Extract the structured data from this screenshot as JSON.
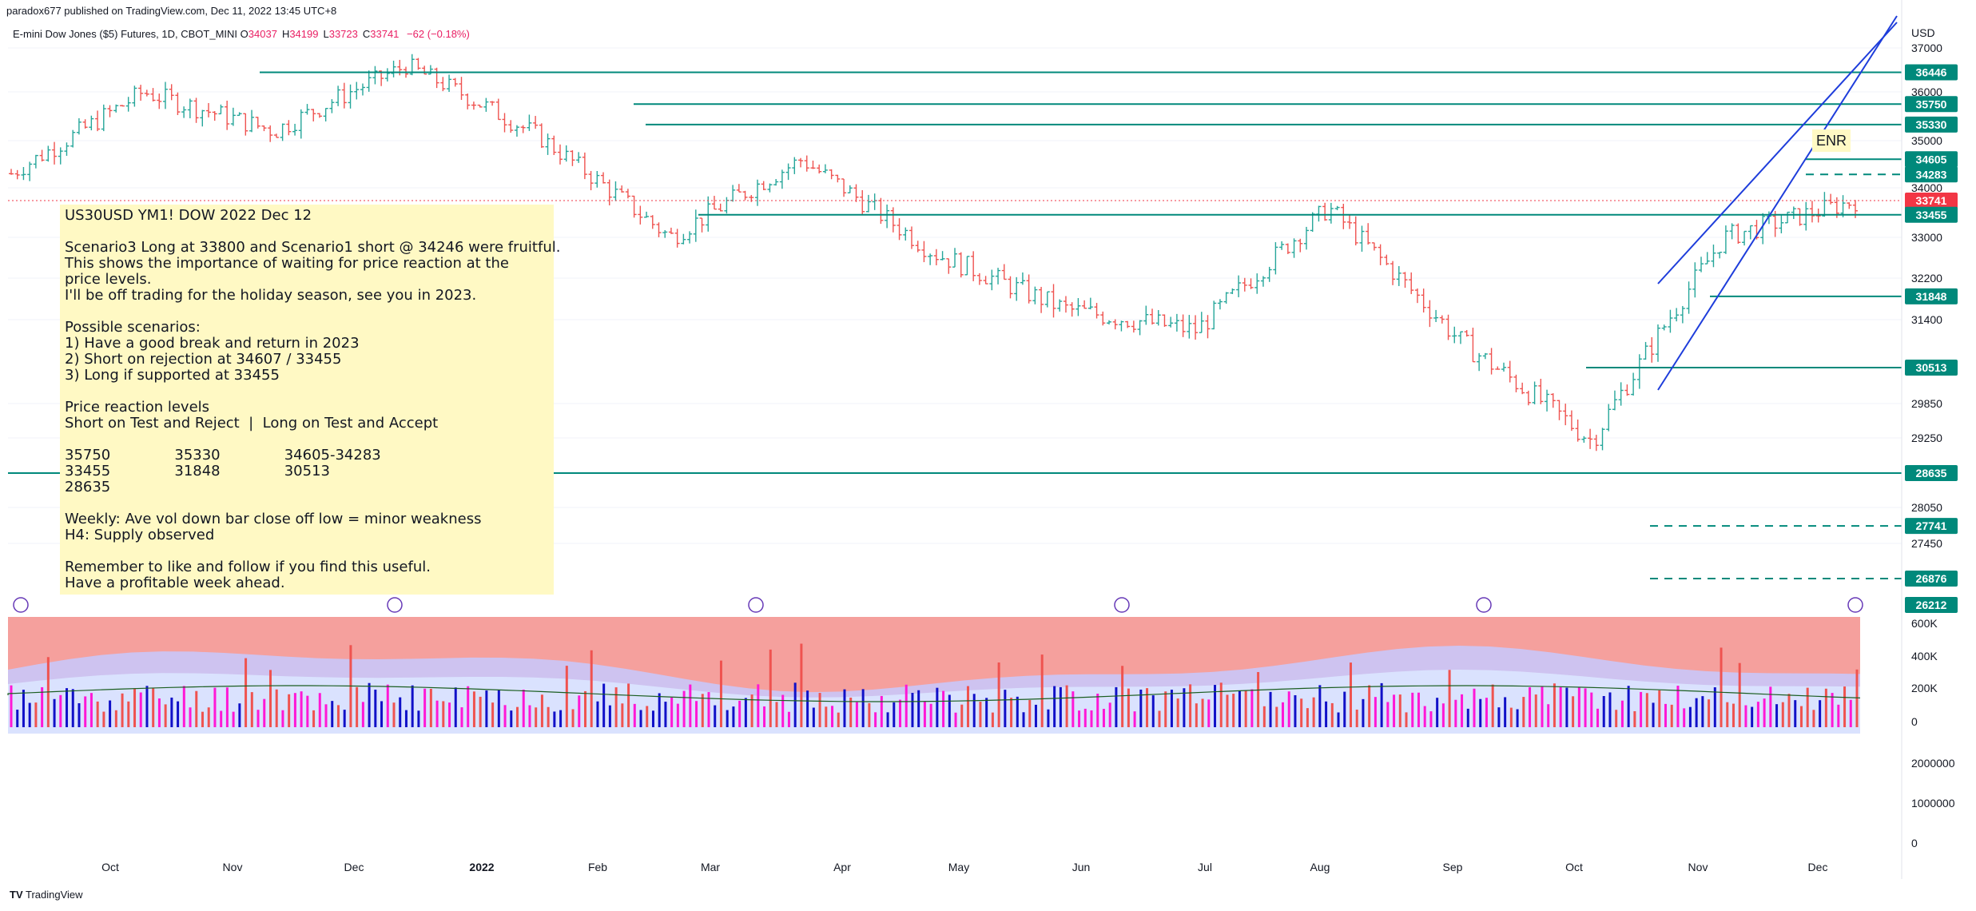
{
  "header": {
    "published": "paradox677 published on TradingView.com, Dec 11, 2022 13:45 UTC+8",
    "symbol": "E-mini Dow Jones ($5) Futures, 1D, CBOT_MINI",
    "ohlc": [
      {
        "label": "O",
        "value": "34037"
      },
      {
        "label": "H",
        "value": "34199"
      },
      {
        "label": "L",
        "value": "33723"
      },
      {
        "label": "C",
        "value": "33741"
      }
    ],
    "change": "−62 (−0.18%)"
  },
  "note": {
    "lines": [
      "US30USD YM1! DOW 2022 Dec 12",
      "",
      "Scenario3 Long at 33800 and Scenario1 short @ 34246 were fruitful.",
      "This shows the importance of waiting for price reaction at the",
      "price levels.",
      "I'll be off trading for the holiday season, see you in 2023.",
      "",
      "Possible scenarios:",
      "1) Have a good break and return in 2023",
      "2) Short on rejection at 34607 / 33455",
      "3) Long if supported at 33455",
      "",
      "Price reaction levels",
      "Short on Test and Reject  |  Long on Test and Accept",
      "",
      "35750              35330              34605-34283",
      "33455              31848              30513",
      "28635",
      "",
      "Weekly: Ave vol down bar close off low = minor weakness",
      "H4: Supply observed",
      "",
      "Remember to like and follow if you find this useful.",
      "Have a profitable week ahead."
    ]
  },
  "footer": {
    "brand": "TradingView"
  },
  "colors": {
    "up": "#26a69a",
    "down": "#ef5350",
    "level": "#00897b",
    "channel": "#1e3ddb",
    "current": "#f23645",
    "volume_bg": "#f5a09d",
    "volume_band": "#c7c9ff",
    "vol_blue": "#1010c8",
    "vol_magenta": "#ff18d6",
    "vol_red": "#ef5350"
  },
  "chart_data": {
    "type": "candlestick",
    "title": "E-mini Dow Jones ($5) Futures, 1D, CBOT_MINI",
    "currency": "USD",
    "x_labels": [
      "Oct",
      "Nov",
      "Dec",
      "2022",
      "Feb",
      "Mar",
      "Apr",
      "May",
      "Jun",
      "Jul",
      "Aug",
      "Sep",
      "Oct",
      "Nov",
      "Dec"
    ],
    "y_ticks": [
      37000,
      36000,
      35000,
      34000,
      33000,
      32200,
      31400,
      29850,
      29250,
      28050,
      27450
    ],
    "ylim": [
      26212,
      37400
    ],
    "last_price": 33741,
    "levels": [
      {
        "price": 36446,
        "style": "solid",
        "start_label": "Nov"
      },
      {
        "price": 35750,
        "style": "solid",
        "start_label": "Feb"
      },
      {
        "price": 35330,
        "style": "solid",
        "start_label": "Feb"
      },
      {
        "price": 34605,
        "style": "solid",
        "start_label": "Dec"
      },
      {
        "price": 34283,
        "style": "dashed",
        "start_label": "Dec"
      },
      {
        "price": 33455,
        "style": "solid",
        "start_label": "Mar"
      },
      {
        "price": 31848,
        "style": "solid",
        "start_label": "Nov"
      },
      {
        "price": 30513,
        "style": "solid",
        "start_label": "Oct"
      },
      {
        "price": 28635,
        "style": "solid",
        "start_label": "Oct"
      },
      {
        "price": 27741,
        "style": "dashed",
        "start_label": "Oct"
      },
      {
        "price": 26876,
        "style": "dashed",
        "start_label": "Oct"
      }
    ],
    "price_tags": [
      "36446",
      "35750",
      "35330",
      "34605",
      "34283",
      "33741",
      "33455",
      "31848",
      "30513",
      "28635",
      "27741",
      "26876",
      "26212"
    ],
    "annotation": "ENR",
    "volume_panel_ticks": [
      "600K",
      "400K",
      "200K",
      "0"
    ],
    "lower_panel_ticks": [
      "2000000",
      "1000000",
      "0"
    ],
    "path_points": [
      {
        "label": "Oct",
        "close": 34300
      },
      {
        "label": "Nov",
        "close": 36000
      },
      {
        "label": "Dec",
        "close": 35200
      },
      {
        "label": "2022",
        "close": 36600
      },
      {
        "label": "Feb",
        "close": 35100
      },
      {
        "label": "Mar",
        "close": 33000
      },
      {
        "label": "Apr",
        "close": 34600
      },
      {
        "label": "May",
        "close": 32700
      },
      {
        "label": "Jun",
        "close": 31600
      },
      {
        "label": "Jul",
        "close": 31200
      },
      {
        "label": "Aug",
        "close": 33600
      },
      {
        "label": "Sep",
        "close": 31000
      },
      {
        "label": "Oct",
        "close": 29200
      },
      {
        "label": "Nov",
        "close": 33000
      },
      {
        "label": "Dec",
        "close": 33741
      }
    ]
  }
}
